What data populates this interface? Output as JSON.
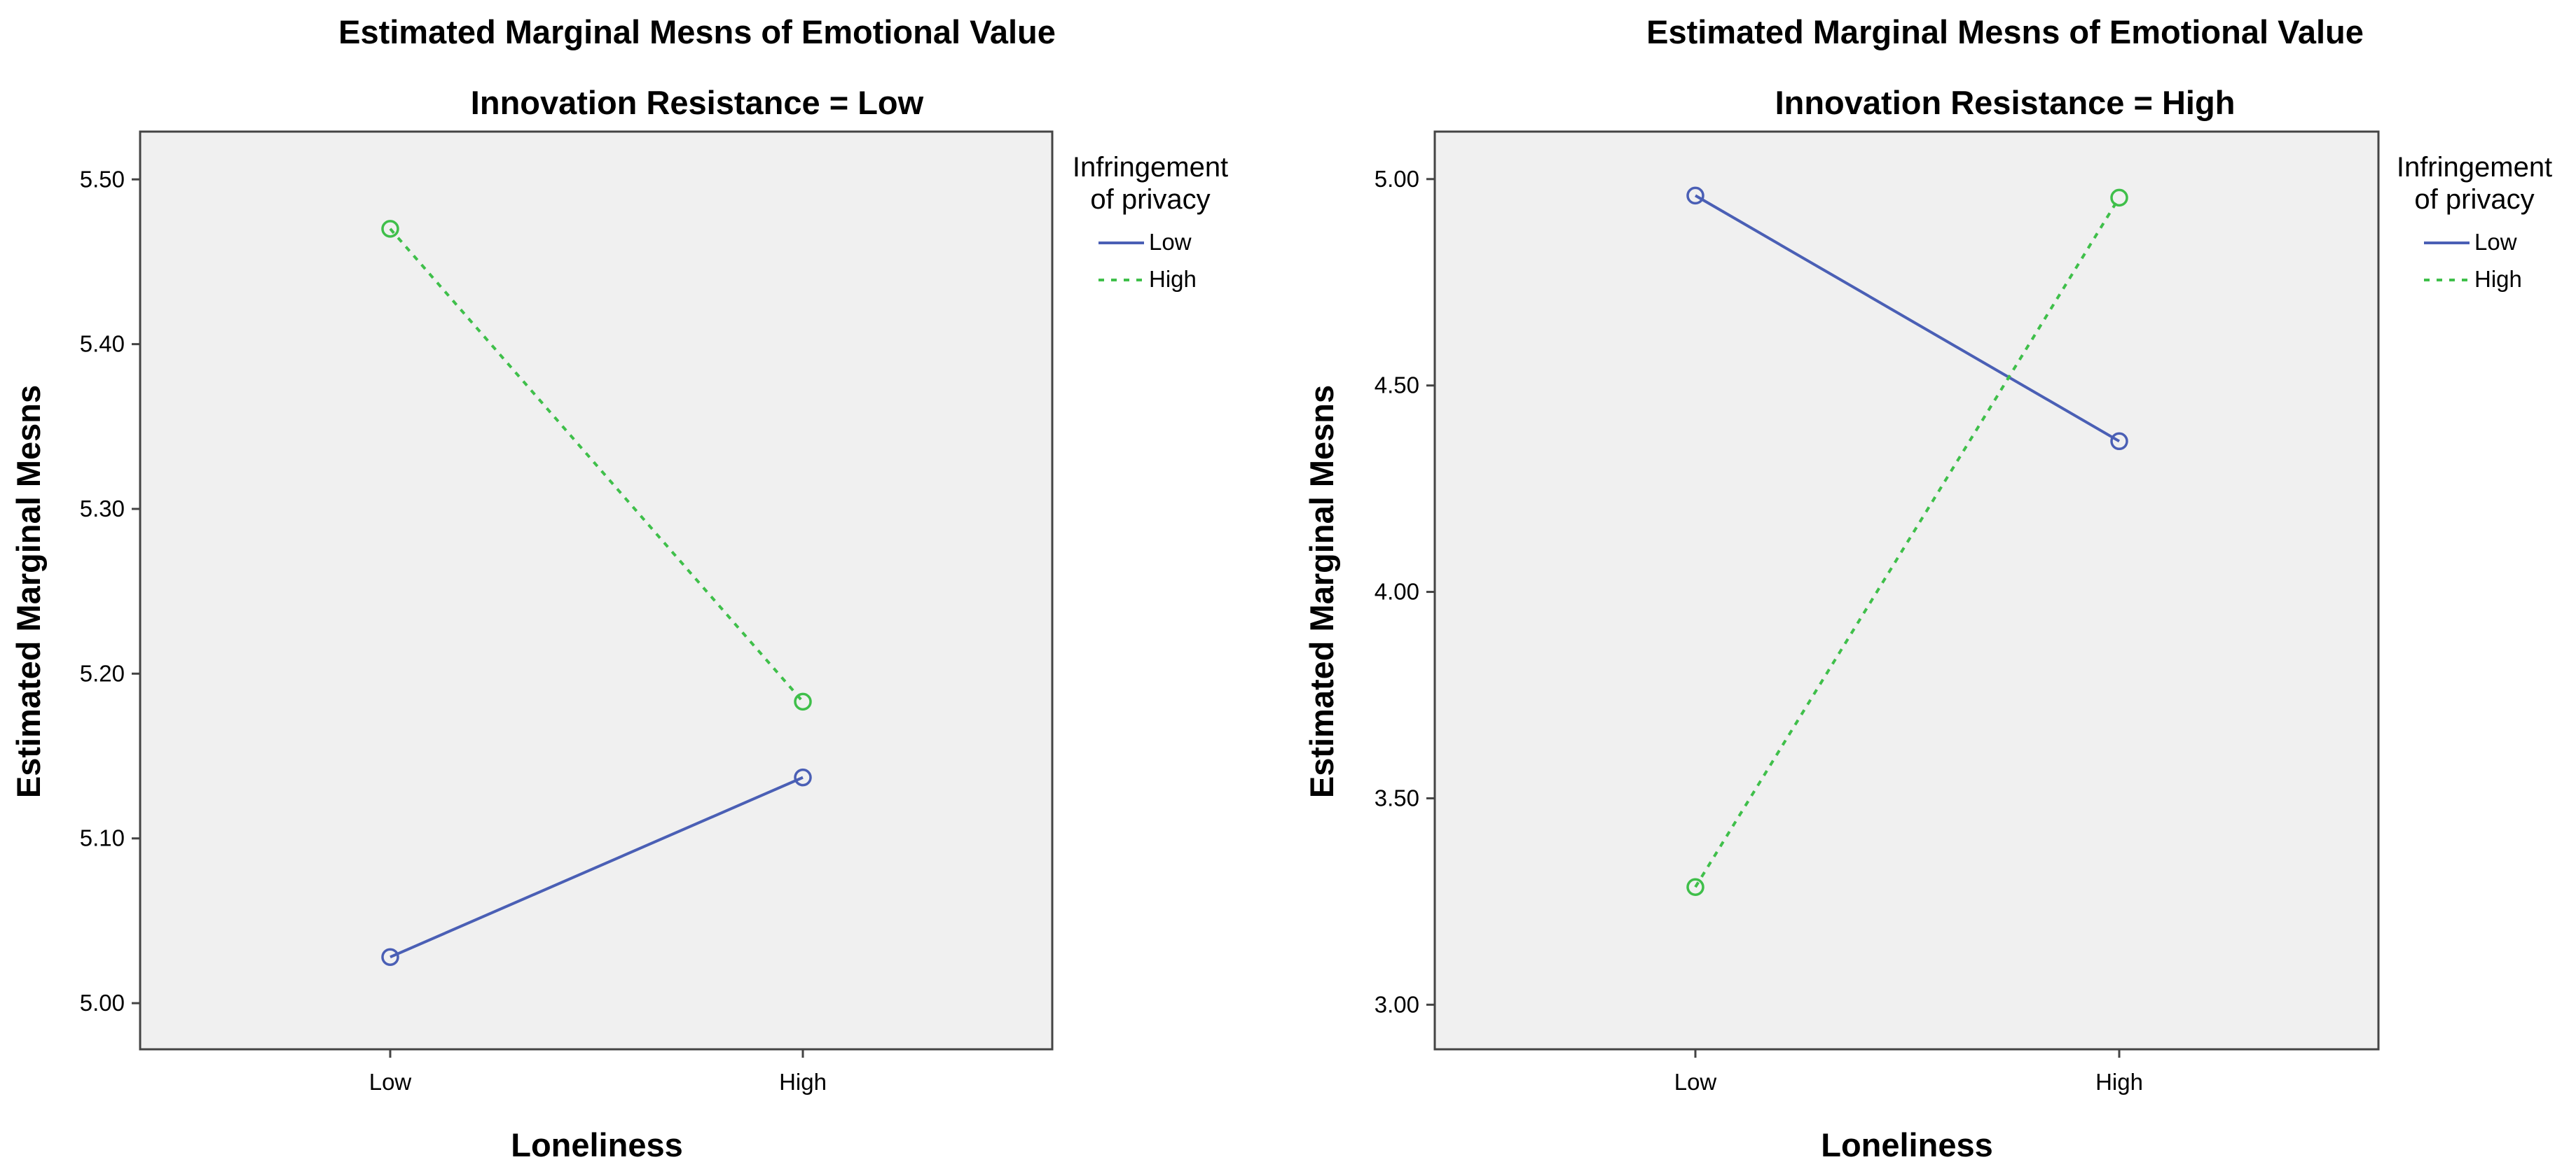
{
  "chart_data": [
    {
      "type": "line",
      "title": "Estimated Marginal Mesns of Emotional Value",
      "subtitle": "Innovation Resistance = Low",
      "xlabel": "Loneliness",
      "ylabel": "Estimated Marginal Mesns",
      "categories": [
        "Low",
        "High"
      ],
      "ylim": [
        4.972,
        5.529
      ],
      "yticks": [
        "5.00",
        "5.10",
        "5.20",
        "5.30",
        "5.40",
        "5.50"
      ],
      "grid": false,
      "legend": {
        "title_line1": "Infringement",
        "title_line2": "of privacy",
        "placement": "right"
      },
      "series": [
        {
          "name": "Low",
          "values": [
            5.028,
            5.137
          ],
          "color": "#4a5fb5",
          "dash": "solid"
        },
        {
          "name": "High",
          "values": [
            5.47,
            5.183
          ],
          "color": "#3fbf4a",
          "dash": "dotted"
        }
      ]
    },
    {
      "type": "line",
      "title": "Estimated Marginal Mesns of Emotional Value",
      "subtitle": "Innovation Resistance = High",
      "xlabel": "Loneliness",
      "ylabel": "Estimated Marginal Mesns",
      "categories": [
        "Low",
        "High"
      ],
      "ylim": [
        2.892,
        5.115
      ],
      "yticks": [
        "3.00",
        "3.50",
        "4.00",
        "4.50",
        "5.00"
      ],
      "grid": false,
      "legend": {
        "title_line1": "Infringement",
        "title_line2": "of privacy",
        "placement": "right"
      },
      "series": [
        {
          "name": "Low",
          "values": [
            4.96,
            4.365
          ],
          "color": "#4a5fb5",
          "dash": "solid"
        },
        {
          "name": "High",
          "values": [
            3.285,
            4.955
          ],
          "color": "#3fbf4a",
          "dash": "dotted"
        }
      ]
    }
  ]
}
